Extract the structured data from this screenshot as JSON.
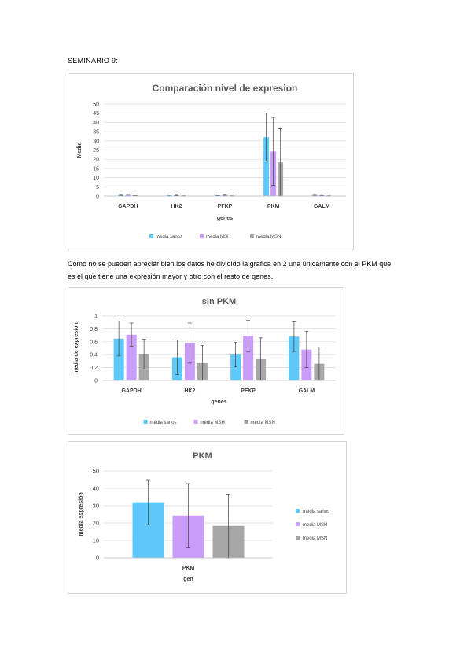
{
  "document": {
    "heading": "SEMINARIO 9:",
    "paragraph": "Como no se pueden apreciar bien los datos he dividido la grafica en 2 una únicamente con el PKM que es el que tiene una expresión mayor y otro con el resto de genes."
  },
  "colors": {
    "media sanos": "#5ec8f8",
    "media MSH": "#c89cf8",
    "media MSN": "#a6a6a6"
  },
  "chart_data": [
    {
      "type": "bar",
      "title": "Comparación nivel de expresion",
      "xlabel": "genes",
      "ylabel": "Media",
      "categories": [
        "GAPDH",
        "HK2",
        "PFKP",
        "PKM",
        "GALM"
      ],
      "ylim": [
        0,
        50
      ],
      "yticks": [
        0,
        5,
        10,
        15,
        20,
        25,
        30,
        35,
        40,
        45,
        50
      ],
      "ytick_labels": [
        "0",
        "5",
        "10",
        "15",
        "20",
        "25",
        "30",
        "35",
        "40",
        "45",
        "50"
      ],
      "grid": true,
      "legend_position": "bottom",
      "series": [
        {
          "name": "media sanos",
          "values": [
            0.65,
            0.36,
            0.4,
            32,
            0.68
          ],
          "errors": [
            0.27,
            0.27,
            0.19,
            13,
            0.23
          ]
        },
        {
          "name": "media MSH",
          "values": [
            0.71,
            0.58,
            0.69,
            24.2,
            0.48
          ],
          "errors": [
            0.18,
            0.31,
            0.24,
            18.5,
            0.28
          ]
        },
        {
          "name": "media MSN",
          "values": [
            0.41,
            0.27,
            0.33,
            18.3,
            0.26
          ],
          "errors": [
            0.23,
            0.27,
            0.33,
            18.3,
            0.26
          ]
        }
      ]
    },
    {
      "type": "bar",
      "title": "sin PKM",
      "xlabel": "genes",
      "ylabel": "media de expresion",
      "categories": [
        "GAPDH",
        "HK2",
        "PFKP",
        "GALM"
      ],
      "ylim": [
        0,
        1
      ],
      "yticks": [
        0,
        0.2,
        0.4,
        0.6,
        0.8,
        1
      ],
      "ytick_labels": [
        "0",
        "0,2",
        "0,4",
        "0,6",
        "0,8",
        "1"
      ],
      "grid": true,
      "legend_position": "bottom",
      "series": [
        {
          "name": "media sanos",
          "values": [
            0.65,
            0.36,
            0.4,
            0.68
          ],
          "errors": [
            0.27,
            0.27,
            0.19,
            0.23
          ]
        },
        {
          "name": "media MSH",
          "values": [
            0.71,
            0.58,
            0.69,
            0.48
          ],
          "errors": [
            0.18,
            0.31,
            0.24,
            0.28
          ]
        },
        {
          "name": "media MSN",
          "values": [
            0.41,
            0.27,
            0.33,
            0.26
          ],
          "errors": [
            0.23,
            0.27,
            0.33,
            0.26
          ]
        }
      ]
    },
    {
      "type": "bar",
      "title": "PKM",
      "xlabel": "gen",
      "ylabel": "media expresión",
      "categories": [
        "PKM"
      ],
      "ylim": [
        0,
        50
      ],
      "yticks": [
        0,
        10,
        20,
        30,
        40,
        50
      ],
      "ytick_labels": [
        "0",
        "10",
        "20",
        "30",
        "40",
        "50"
      ],
      "grid": true,
      "legend_position": "right",
      "series": [
        {
          "name": "media sanos",
          "values": [
            32
          ],
          "errors": [
            13
          ]
        },
        {
          "name": "media MSH",
          "values": [
            24.2
          ],
          "errors": [
            18.5
          ]
        },
        {
          "name": "media MSN",
          "values": [
            18.3
          ],
          "errors": [
            18.3
          ]
        }
      ]
    }
  ]
}
